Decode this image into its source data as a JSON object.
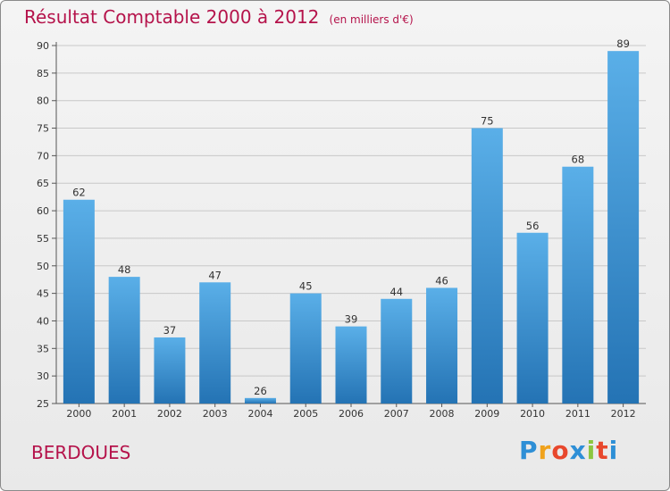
{
  "chart_data": {
    "type": "bar",
    "title": "Résultat Comptable 2000 à 2012",
    "subtitle": "(en milliers d'€)",
    "categories": [
      "2000",
      "2001",
      "2002",
      "2003",
      "2004",
      "2005",
      "2006",
      "2007",
      "2008",
      "2009",
      "2010",
      "2011",
      "2012"
    ],
    "values": [
      62,
      48,
      37,
      47,
      26,
      45,
      39,
      44,
      46,
      75,
      56,
      68,
      89
    ],
    "ylim": [
      25,
      90
    ],
    "yticks": [
      25,
      30,
      35,
      40,
      45,
      50,
      55,
      60,
      65,
      70,
      75,
      80,
      85,
      90
    ],
    "grid": true,
    "xlabel": "",
    "ylabel": ""
  },
  "footer": {
    "commune": "BERDOUES",
    "brand_letters": [
      "P",
      "r",
      "o",
      "x",
      "i",
      "t",
      "i"
    ],
    "brand_colors": [
      "#2e8fd6",
      "#f0a21c",
      "#e8472c",
      "#2e8fd6",
      "#8cc63f",
      "#e8472c",
      "#2e8fd6"
    ]
  },
  "colors": {
    "title": "#b5134b",
    "bar_top": "#5aafe8",
    "bar_bottom": "#2473b4",
    "grid": "#c8c8c8"
  }
}
